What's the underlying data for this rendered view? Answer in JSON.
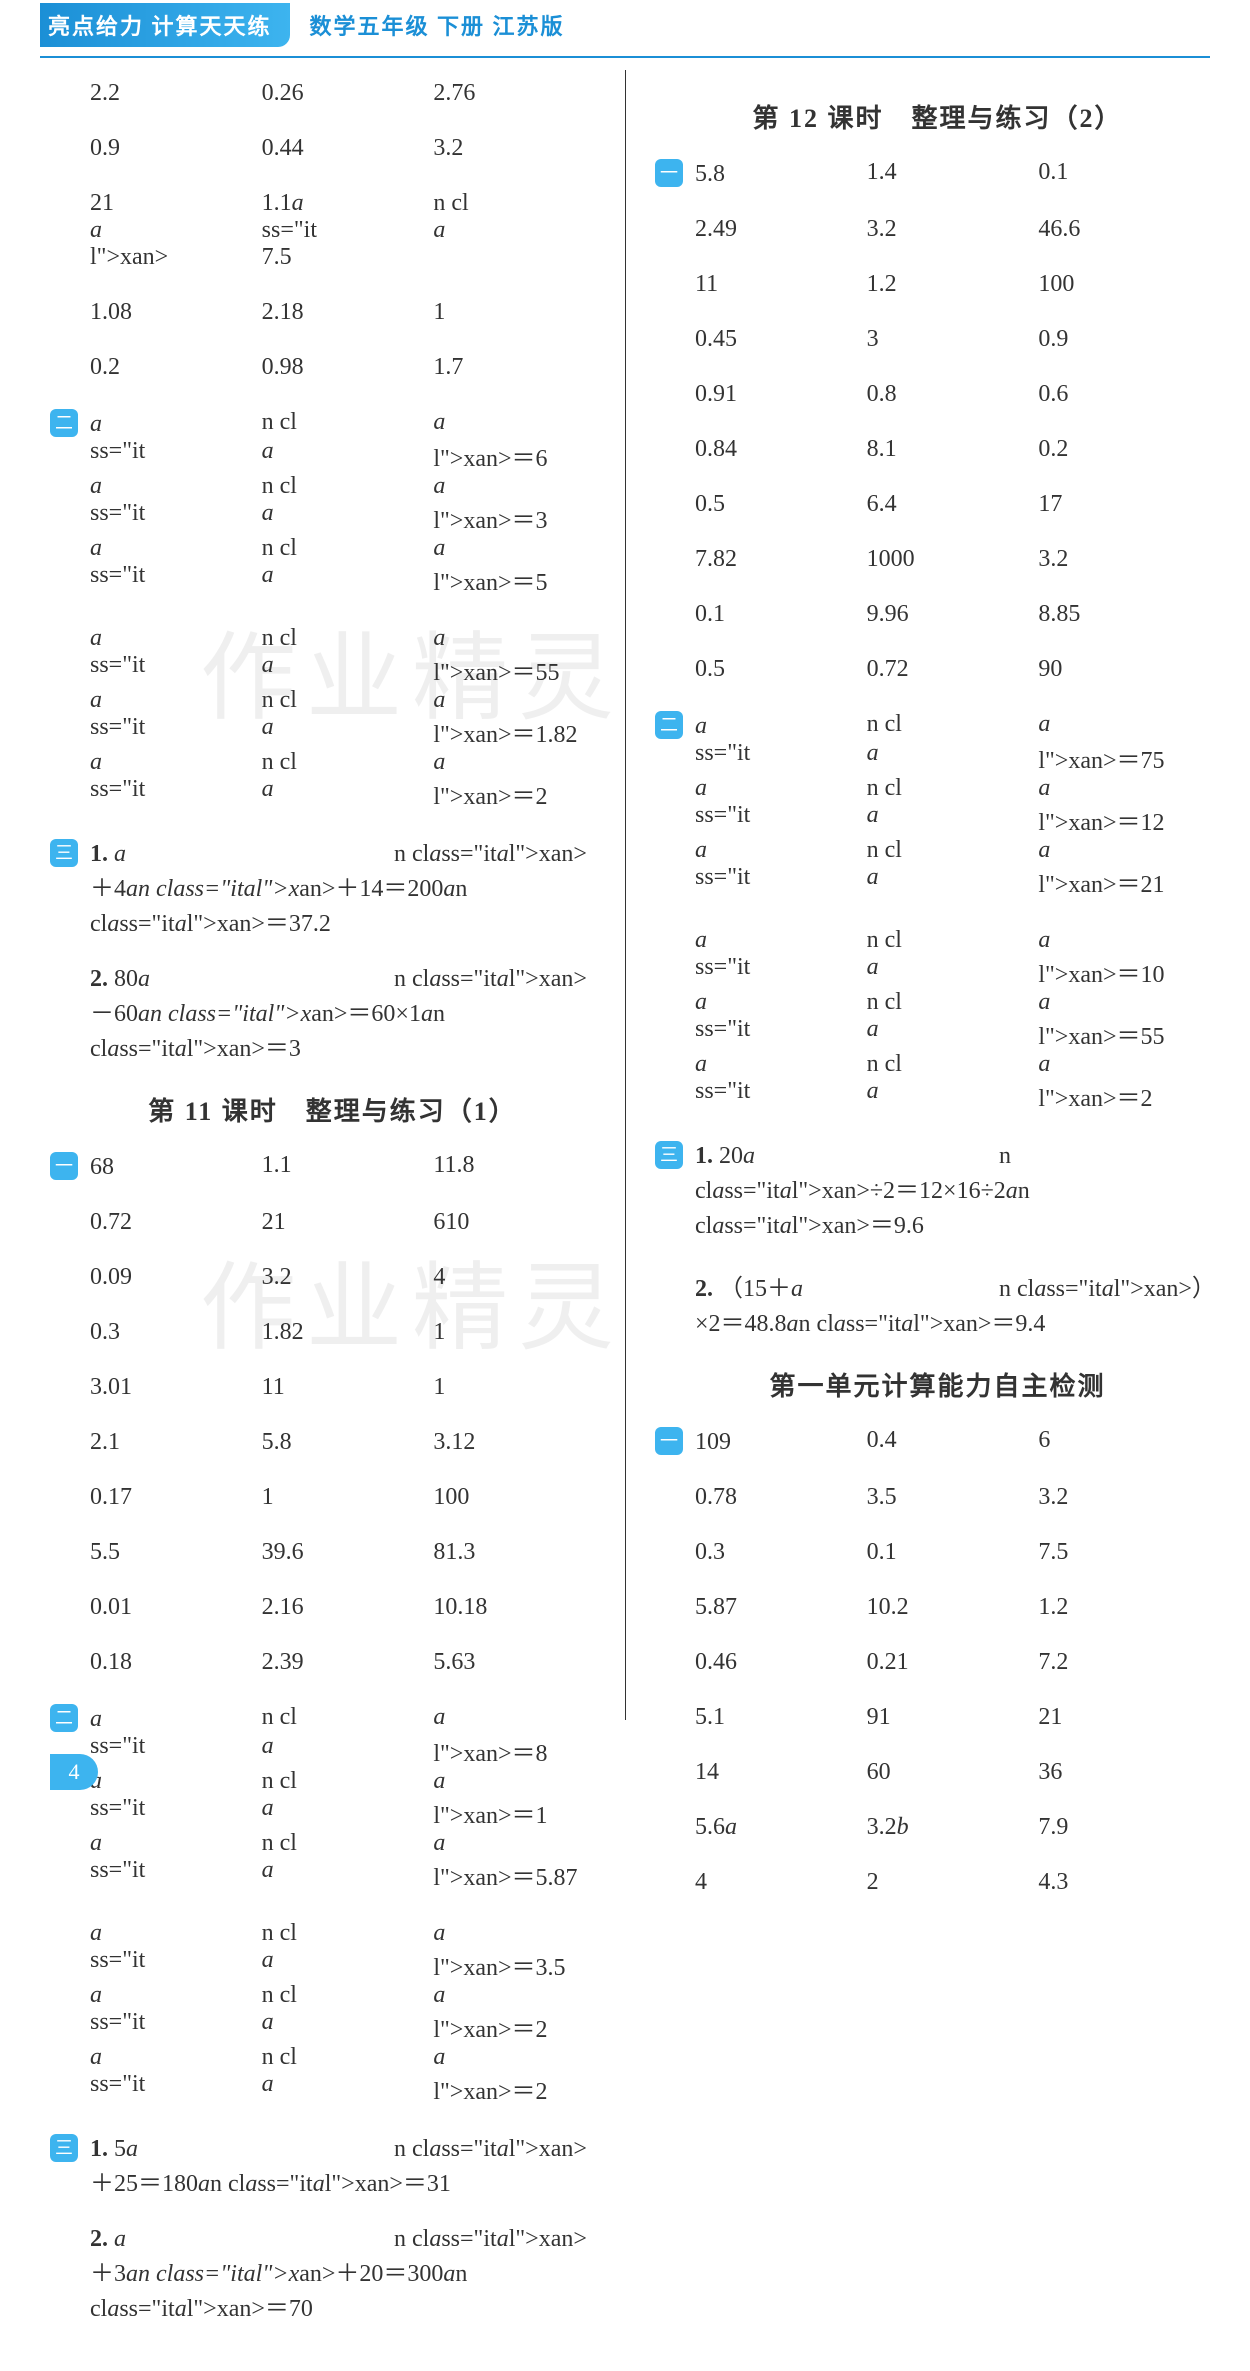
{
  "header": {
    "left": "亮点给力  计算天天练",
    "right": "数学五年级  下册  江苏版"
  },
  "page_number": "4",
  "watermark": "作业精灵",
  "left_col": {
    "top_rows": [
      [
        "2.2",
        "0.26",
        "2.76"
      ],
      [
        "0.9",
        "0.44",
        "3.2"
      ],
      [
        "21",
        "1.1x",
        "7.5"
      ],
      [
        "1.08",
        "2.18",
        "1"
      ],
      [
        "0.2",
        "0.98",
        "1.7"
      ]
    ],
    "sec2_rows": [
      [
        "x＝6",
        "x＝3",
        "x＝5"
      ],
      [
        "x＝55",
        "x＝1.82",
        "x＝2"
      ]
    ],
    "sec3_rows": [
      {
        "num": "1.",
        "eq": "x＋4x＋14＝200",
        "ans": "x＝37.2"
      },
      {
        "num": "2.",
        "eq": "80x－60x＝60×1",
        "ans": "x＝3"
      }
    ],
    "title11": "第 11 课时　整理与练习（1）",
    "s11_1": [
      [
        "68",
        "1.1",
        "11.8"
      ],
      [
        "0.72",
        "21",
        "610"
      ],
      [
        "0.09",
        "3.2",
        "4"
      ],
      [
        "0.3",
        "1.82",
        "1"
      ],
      [
        "3.01",
        "11",
        "1"
      ],
      [
        "2.1",
        "5.8",
        "3.12"
      ],
      [
        "0.17",
        "1",
        "100"
      ],
      [
        "5.5",
        "39.6",
        "81.3"
      ],
      [
        "0.01",
        "2.16",
        "10.18"
      ],
      [
        "0.18",
        "2.39",
        "5.63"
      ]
    ],
    "s11_2": [
      [
        "x＝8",
        "x＝1",
        "x＝5.87"
      ],
      [
        "x＝3.5",
        "x＝2",
        "x＝2"
      ]
    ],
    "s11_3": [
      {
        "num": "1.",
        "eq": "5x＋25＝180",
        "ans": "x＝31"
      },
      {
        "num": "2.",
        "eq": "x＋3x＋20＝300",
        "ans": "x＝70"
      }
    ]
  },
  "right_col": {
    "title12": "第 12 课时　整理与练习（2）",
    "s12_1": [
      [
        "5.8",
        "1.4",
        "0.1"
      ],
      [
        "2.49",
        "3.2",
        "46.6"
      ],
      [
        "11",
        "1.2",
        "100"
      ],
      [
        "0.45",
        "3",
        "0.9"
      ],
      [
        "0.91",
        "0.8",
        "0.6"
      ],
      [
        "0.84",
        "8.1",
        "0.2"
      ],
      [
        "0.5",
        "6.4",
        "17"
      ],
      [
        "7.82",
        "1000",
        "3.2"
      ],
      [
        "0.1",
        "9.96",
        "8.85"
      ],
      [
        "0.5",
        "0.72",
        "90"
      ]
    ],
    "s12_2": [
      [
        "x＝75",
        "x＝12",
        "x＝21"
      ],
      [
        "x＝10",
        "x＝55",
        "x＝2"
      ]
    ],
    "s12_3": [
      {
        "num": "1.",
        "eq": "20x÷2＝12×16÷2",
        "ans": "x＝9.6"
      },
      {
        "num": "2.",
        "eq": "（15＋x）×2＝48.8",
        "ans": "x＝9.4"
      }
    ],
    "title_self": "第一单元计算能力自主检测",
    "self_1": [
      [
        "109",
        "0.4",
        "6"
      ],
      [
        "0.78",
        "3.5",
        "3.2"
      ],
      [
        "0.3",
        "0.1",
        "7.5"
      ],
      [
        "5.87",
        "10.2",
        "1.2"
      ],
      [
        "0.46",
        "0.21",
        "7.2"
      ],
      [
        "5.1",
        "91",
        "21"
      ],
      [
        "14",
        "60",
        "36"
      ],
      [
        "5.6a",
        "3.2b",
        "7.9"
      ],
      [
        "4",
        "2",
        "4.3"
      ]
    ]
  },
  "badges": {
    "one": "一",
    "two": "二",
    "three": "三"
  }
}
